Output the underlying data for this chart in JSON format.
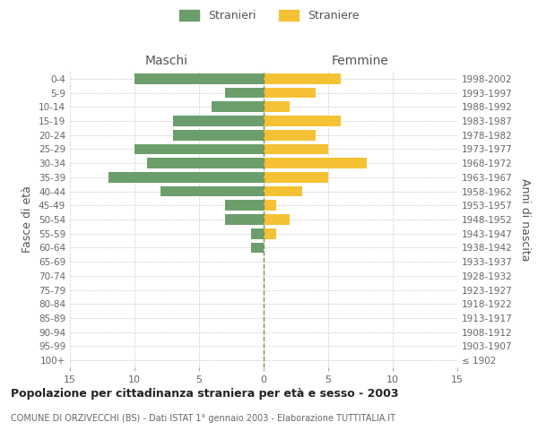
{
  "age_groups": [
    "100+",
    "95-99",
    "90-94",
    "85-89",
    "80-84",
    "75-79",
    "70-74",
    "65-69",
    "60-64",
    "55-59",
    "50-54",
    "45-49",
    "40-44",
    "35-39",
    "30-34",
    "25-29",
    "20-24",
    "15-19",
    "10-14",
    "5-9",
    "0-4"
  ],
  "birth_years": [
    "≤ 1902",
    "1903-1907",
    "1908-1912",
    "1913-1917",
    "1918-1922",
    "1923-1927",
    "1928-1932",
    "1933-1937",
    "1938-1942",
    "1943-1947",
    "1948-1952",
    "1953-1957",
    "1958-1962",
    "1963-1967",
    "1968-1972",
    "1973-1977",
    "1978-1982",
    "1983-1987",
    "1988-1992",
    "1993-1997",
    "1998-2002"
  ],
  "males": [
    0,
    0,
    0,
    0,
    0,
    0,
    0,
    0,
    1,
    1,
    3,
    3,
    8,
    12,
    9,
    10,
    7,
    7,
    4,
    3,
    10
  ],
  "females": [
    0,
    0,
    0,
    0,
    0,
    0,
    0,
    0,
    0,
    1,
    2,
    1,
    3,
    5,
    8,
    5,
    4,
    6,
    2,
    4,
    6
  ],
  "male_color": "#6b9e6b",
  "female_color": "#f5c235",
  "male_label": "Stranieri",
  "female_label": "Straniere",
  "title": "Popolazione per cittadinanza straniera per età e sesso - 2003",
  "subtitle": "COMUNE DI ORZIVECCHI (BS) - Dati ISTAT 1° gennaio 2003 - Elaborazione TUTTITALIA.IT",
  "ylabel_left": "Fasce di età",
  "ylabel_right": "Anni di nascita",
  "xlabel_left": "Maschi",
  "xlabel_right": "Femmine",
  "xlim": 15,
  "background_color": "#ffffff",
  "grid_color": "#cccccc"
}
